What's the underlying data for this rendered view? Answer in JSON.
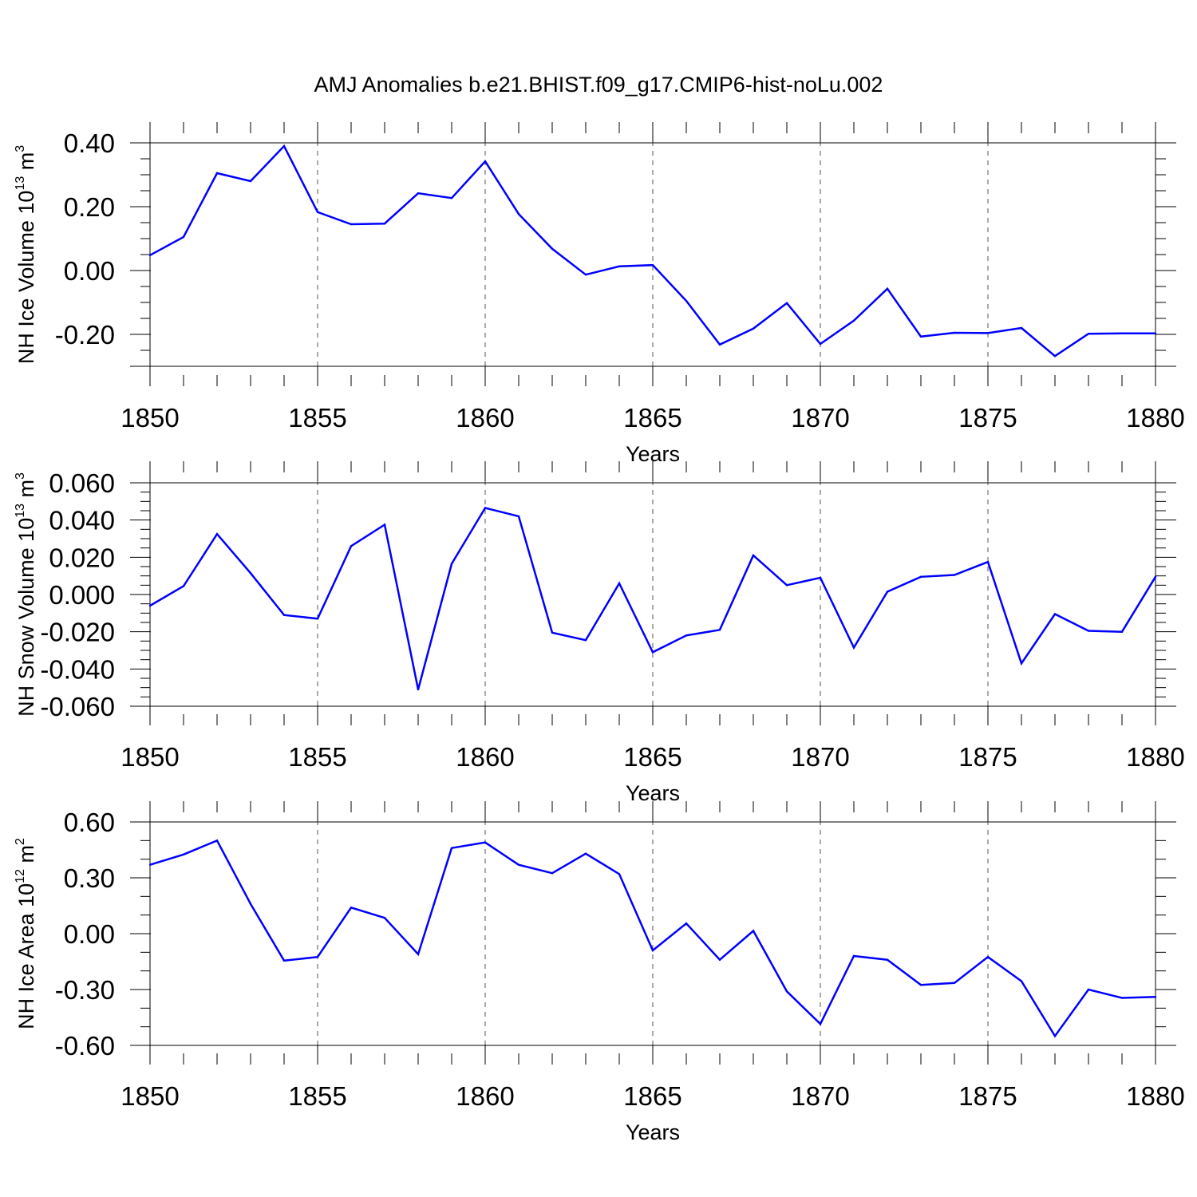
{
  "chart_data": {
    "title": "AMJ Anomalies b.e21.BHIST.f09_g17.CMIP6-hist-noLu.002",
    "type": "line",
    "line_color": "#0000ff",
    "panels": [
      {
        "type": "line",
        "ylabel": {
          "main": "NH Ice Volume 10",
          "exponent": "13",
          "unit": " m",
          "unit_exponent": "3"
        },
        "xlabel": "Years",
        "xlim": [
          1850,
          1880
        ],
        "ylim": [
          -0.3,
          0.4
        ],
        "yticks": [
          0.4,
          0.2,
          0.0,
          -0.2
        ],
        "ytick_labels": [
          "0.40",
          "0.20",
          "0.00",
          "-0.20"
        ],
        "x": [
          1850,
          1851,
          1852,
          1853,
          1854,
          1855,
          1856,
          1857,
          1858,
          1859,
          1860,
          1861,
          1862,
          1863,
          1864,
          1865,
          1866,
          1867,
          1868,
          1869,
          1870,
          1871,
          1872,
          1873,
          1874,
          1875,
          1876,
          1877,
          1878,
          1879,
          1880
        ],
        "values": [
          0.048,
          0.105,
          0.305,
          0.28,
          0.39,
          0.183,
          0.145,
          0.147,
          0.242,
          0.227,
          0.342,
          0.177,
          0.068,
          -0.013,
          0.013,
          0.017,
          -0.095,
          -0.232,
          -0.182,
          -0.102,
          -0.23,
          -0.157,
          -0.057,
          -0.207,
          -0.195,
          -0.196,
          -0.18,
          -0.268,
          -0.198,
          -0.197,
          -0.197
        ]
      },
      {
        "type": "line",
        "ylabel": {
          "main": "NH Snow Volume 10",
          "exponent": "13",
          "unit": " m",
          "unit_exponent": "3"
        },
        "xlabel": "Years",
        "xlim": [
          1850,
          1880
        ],
        "ylim": [
          -0.06,
          0.06
        ],
        "yticks": [
          0.06,
          0.04,
          0.02,
          0.0,
          -0.02,
          -0.04,
          -0.06
        ],
        "ytick_labels": [
          "0.060",
          "0.040",
          "0.020",
          "0.000",
          "-0.020",
          "-0.040",
          "-0.060"
        ],
        "x": [
          1850,
          1851,
          1852,
          1853,
          1854,
          1855,
          1856,
          1857,
          1858,
          1859,
          1860,
          1861,
          1862,
          1863,
          1864,
          1865,
          1866,
          1867,
          1868,
          1869,
          1870,
          1871,
          1872,
          1873,
          1874,
          1875,
          1876,
          1877,
          1878,
          1879,
          1880
        ],
        "values": [
          -0.006,
          0.0045,
          0.0325,
          0.0115,
          -0.011,
          -0.013,
          0.026,
          0.0375,
          -0.051,
          0.0165,
          0.0465,
          0.042,
          -0.0205,
          -0.0245,
          0.006,
          -0.031,
          -0.022,
          -0.019,
          0.021,
          0.005,
          0.009,
          -0.0285,
          0.0015,
          0.0095,
          0.0105,
          0.0175,
          -0.037,
          -0.0105,
          -0.0195,
          -0.02,
          0.0095
        ]
      },
      {
        "type": "line",
        "ylabel": {
          "main": "NH Ice Area 10",
          "exponent": "12",
          "unit": " m",
          "unit_exponent": "2"
        },
        "xlabel": "Years",
        "xlim": [
          1850,
          1880
        ],
        "ylim": [
          -0.6,
          0.6
        ],
        "yticks": [
          0.6,
          0.3,
          0.0,
          -0.3,
          -0.6
        ],
        "ytick_labels": [
          "0.60",
          "0.30",
          "0.00",
          "-0.30",
          "-0.60"
        ],
        "x": [
          1850,
          1851,
          1852,
          1853,
          1854,
          1855,
          1856,
          1857,
          1858,
          1859,
          1860,
          1861,
          1862,
          1863,
          1864,
          1865,
          1866,
          1867,
          1868,
          1869,
          1870,
          1871,
          1872,
          1873,
          1874,
          1875,
          1876,
          1877,
          1878,
          1879,
          1880
        ],
        "values": [
          0.37,
          0.425,
          0.5,
          0.16,
          -0.145,
          -0.125,
          0.14,
          0.085,
          -0.11,
          0.46,
          0.49,
          0.37,
          0.325,
          0.43,
          0.32,
          -0.09,
          0.055,
          -0.14,
          0.015,
          -0.31,
          -0.485,
          -0.12,
          -0.14,
          -0.275,
          -0.265,
          -0.125,
          -0.255,
          -0.55,
          -0.3,
          -0.345,
          -0.34
        ]
      }
    ],
    "xticks": [
      1850,
      1855,
      1860,
      1865,
      1870,
      1875,
      1880
    ],
    "xtick_labels": [
      "1850",
      "1855",
      "1860",
      "1865",
      "1870",
      "1875",
      "1880"
    ],
    "grid": "dashed vertical lines at major x ticks"
  }
}
